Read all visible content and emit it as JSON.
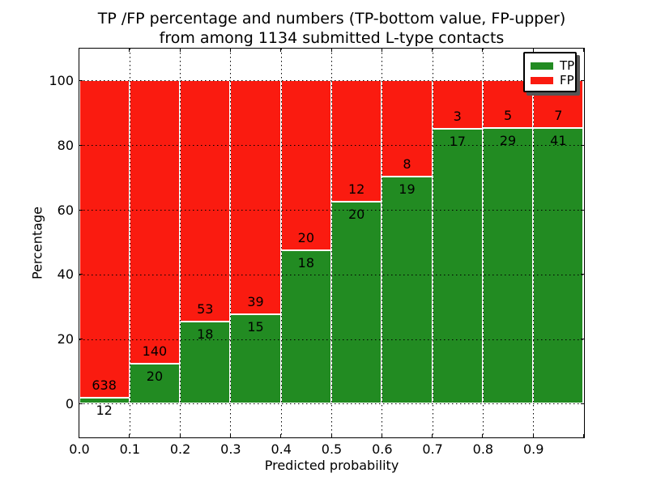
{
  "title": {
    "line1": "TP /FP percentage and numbers (TP-bottom value, FP-upper)",
    "line2": "from among 1134 submitted L-type contacts"
  },
  "axes": {
    "xlabel": "Predicted probability",
    "ylabel": "Percentage",
    "xlim": [
      0.0,
      1.0
    ],
    "ylim": [
      -10.3,
      110.0
    ],
    "x_tick_values": [
      0.0,
      0.1,
      0.2,
      0.3,
      0.4,
      0.5,
      0.6,
      0.7,
      0.8,
      0.9
    ],
    "x_tick_labels": [
      "0.0",
      "0.1",
      "0.2",
      "0.3",
      "0.4",
      "0.5",
      "0.6",
      "0.7",
      "0.8",
      "0.9"
    ],
    "y_tick_values": [
      0,
      20,
      40,
      60,
      80,
      100
    ],
    "y_tick_labels": [
      "0",
      "20",
      "40",
      "60",
      "80",
      "100"
    ],
    "grid": true,
    "grid_style": "dotted"
  },
  "legend": {
    "position": "upper right",
    "items": [
      {
        "label": "TP",
        "color": "#228b22"
      },
      {
        "label": "FP",
        "color": "#fa1b10"
      }
    ]
  },
  "chart_data": {
    "type": "bar",
    "stacked": true,
    "normalized": "each bar stacks to 100%",
    "total_contacts": 1134,
    "bin_width": 0.1,
    "categories": [
      "0.0-0.1",
      "0.1-0.2",
      "0.2-0.3",
      "0.3-0.4",
      "0.4-0.5",
      "0.5-0.6",
      "0.6-0.7",
      "0.7-0.8",
      "0.8-0.9",
      "0.9-1.0"
    ],
    "bin_starts": [
      0.0,
      0.1,
      0.2,
      0.3,
      0.4,
      0.5,
      0.6,
      0.7,
      0.8,
      0.9
    ],
    "series": [
      {
        "name": "TP",
        "color": "#228b22",
        "counts": [
          12,
          20,
          18,
          15,
          18,
          20,
          19,
          17,
          29,
          41
        ],
        "percent": [
          1.85,
          12.5,
          25.35,
          27.78,
          47.37,
          62.5,
          70.37,
          85.0,
          85.29,
          85.42
        ]
      },
      {
        "name": "FP",
        "color": "#fa1b10",
        "counts": [
          638,
          140,
          53,
          39,
          20,
          12,
          8,
          3,
          5,
          7
        ],
        "percent": [
          98.15,
          87.5,
          74.65,
          72.22,
          52.63,
          37.5,
          29.63,
          15.0,
          14.71,
          14.58
        ]
      }
    ],
    "title": "TP /FP percentage and numbers (TP-bottom value, FP-upper) from among 1134 submitted L-type contacts",
    "xlabel": "Predicted probability",
    "ylabel": "Percentage",
    "annotation_note": "TP count printed below segment boundary, FP count printed above it"
  },
  "colors": {
    "tp": "#228b22",
    "fp": "#fa1b10",
    "bar_edge": "#ffffff",
    "grid": "#000000",
    "frame": "#000000",
    "background": "#ffffff"
  }
}
